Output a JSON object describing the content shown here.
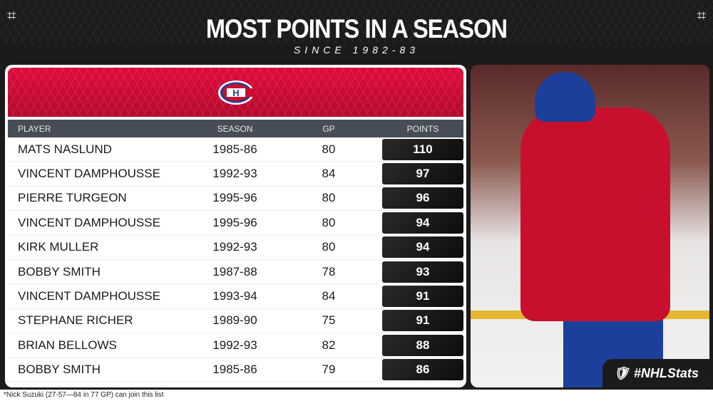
{
  "title": "MOST POINTS IN A SEASON",
  "subtitle": "SINCE 1982-83",
  "headers": {
    "player": "PLAYER",
    "season": "SEASON",
    "gp": "GP",
    "points": "POINTS"
  },
  "rows": [
    {
      "player": "MATS NASLUND",
      "season": "1985-86",
      "gp": "80",
      "points": "110"
    },
    {
      "player": "VINCENT DAMPHOUSSE",
      "season": "1992-93",
      "gp": "84",
      "points": "97"
    },
    {
      "player": "PIERRE TURGEON",
      "season": "1995-96",
      "gp": "80",
      "points": "96"
    },
    {
      "player": "VINCENT DAMPHOUSSE",
      "season": "1995-96",
      "gp": "80",
      "points": "94"
    },
    {
      "player": "KIRK MULLER",
      "season": "1992-93",
      "gp": "80",
      "points": "94"
    },
    {
      "player": "BOBBY SMITH",
      "season": "1987-88",
      "gp": "78",
      "points": "93"
    },
    {
      "player": "VINCENT DAMPHOUSSE",
      "season": "1993-94",
      "gp": "84",
      "points": "91"
    },
    {
      "player": "STEPHANE RICHER",
      "season": "1989-90",
      "gp": "75",
      "points": "91"
    },
    {
      "player": "BRIAN BELLOWS",
      "season": "1992-93",
      "gp": "82",
      "points": "88"
    },
    {
      "player": "BOBBY SMITH",
      "season": "1985-86",
      "gp": "79",
      "points": "86"
    }
  ],
  "badge": "#NHLStats",
  "footnote": "*Nick Suzuki (27-57—84 in 77 GP) can join this list",
  "colors": {
    "red": "#c8102e",
    "blue": "#1b3f9a",
    "header": "#474d57"
  }
}
